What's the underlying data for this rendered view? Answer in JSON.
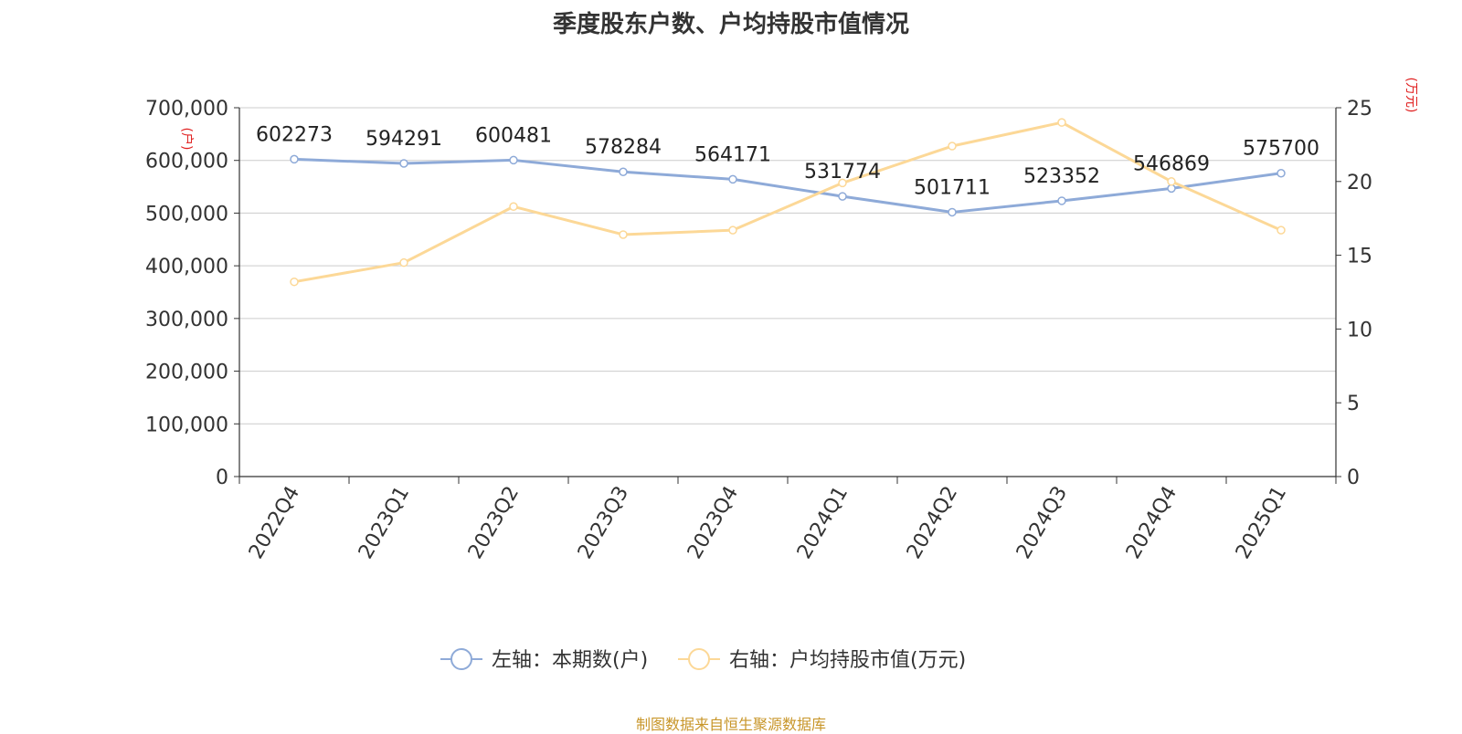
{
  "chart_data": {
    "type": "line",
    "title": "季度股东户数、户均持股市值情况",
    "categories": [
      "2022Q4",
      "2023Q1",
      "2023Q2",
      "2023Q3",
      "2023Q4",
      "2024Q1",
      "2024Q2",
      "2024Q3",
      "2024Q4",
      "2025Q1"
    ],
    "left_axis": {
      "unit_label": "(户)",
      "ylim": [
        0,
        700000
      ],
      "ticks": [
        "0",
        "100,000",
        "200,000",
        "300,000",
        "400,000",
        "500,000",
        "600,000",
        "700,000"
      ],
      "tick_values": [
        0,
        100000,
        200000,
        300000,
        400000,
        500000,
        600000,
        700000
      ]
    },
    "right_axis": {
      "unit_label": "(万元)",
      "ylim": [
        0,
        25
      ],
      "ticks": [
        "0",
        "5",
        "10",
        "15",
        "20",
        "25"
      ],
      "tick_values": [
        0,
        5,
        10,
        15,
        20,
        25
      ]
    },
    "series": [
      {
        "name": "左轴：本期数(户)",
        "axis": "left",
        "values": [
          602273,
          594291,
          600481,
          578284,
          564171,
          531774,
          501711,
          523352,
          546869,
          575700
        ],
        "labels": [
          "602273",
          "594291",
          "600481",
          "578284",
          "564171",
          "531774",
          "501711",
          "523352",
          "546869",
          "575700"
        ],
        "color": "#8eaad8"
      },
      {
        "name": "右轴：户均持股市值(万元)",
        "axis": "right",
        "values": [
          13.2,
          14.5,
          18.3,
          16.4,
          16.7,
          19.9,
          22.4,
          24.0,
          20.0,
          16.7
        ],
        "color": "#fcd897"
      }
    ],
    "grid": true,
    "legend_position": "bottom-center"
  },
  "source_text": "制图数据来自恒生聚源数据库",
  "colors": {
    "unit_label": "#e02020",
    "axis": "#333333",
    "grid": "#cccccc",
    "source": "#c8962a"
  }
}
